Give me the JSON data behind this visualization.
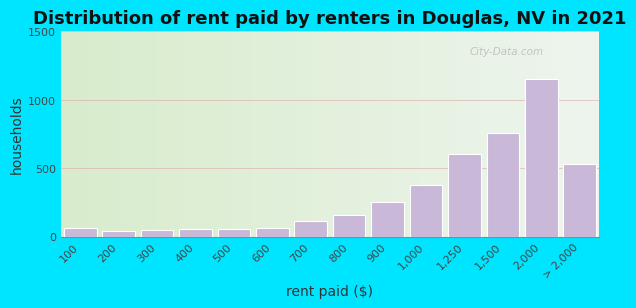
{
  "title": "Distribution of rent paid by renters in Douglas, NV in 2021",
  "xlabel": "rent paid ($)",
  "ylabel": "households",
  "categories": [
    "100",
    "200",
    "300",
    "400",
    "500",
    "600",
    "700",
    "800",
    "900",
    "1,000",
    "1,250",
    "1,500",
    "2,000",
    "> 2,000"
  ],
  "values": [
    65,
    40,
    50,
    55,
    55,
    60,
    115,
    160,
    250,
    375,
    600,
    760,
    1150,
    530
  ],
  "bar_color": "#c9b8d8",
  "bar_edge_color": "#ffffff",
  "background_outer": "#00e5ff",
  "bg_left": "#d8eccc",
  "bg_right": "#eef5ee",
  "ylim": [
    0,
    1500
  ],
  "yticks": [
    0,
    500,
    1000,
    1500
  ],
  "title_fontsize": 13,
  "axis_label_fontsize": 10,
  "tick_fontsize": 8,
  "watermark_text": "City-Data.com"
}
